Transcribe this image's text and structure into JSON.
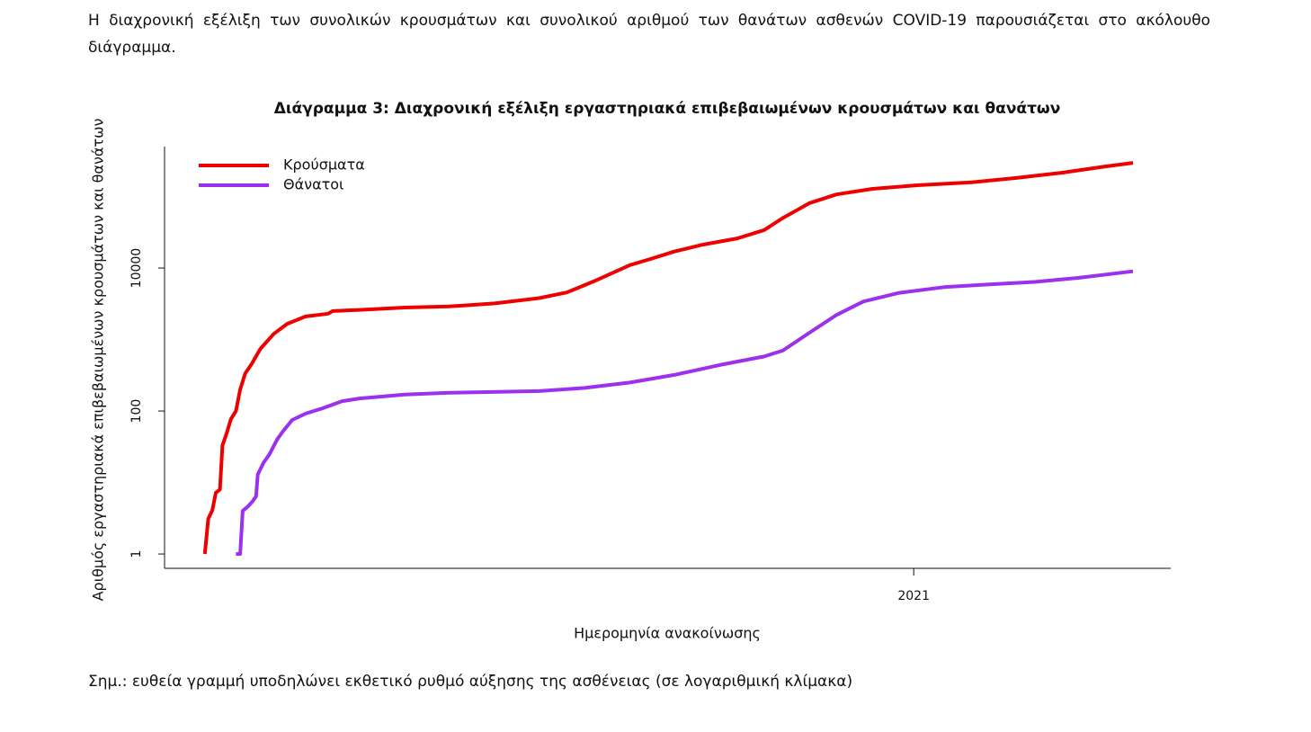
{
  "intro": "Η διαχρονική εξέλιξη των συνολικών κρουσμάτων και συνολικού αριθμού των θανάτων ασθενών COVID-19 παρουσιάζεται στο ακόλουθο διάγραμμα.",
  "chart_data": {
    "type": "line",
    "title": "Διάγραμμα 3: Διαχρονική εξέλιξη εργαστηριακά επιβεβαιωμένων κρουσμάτων και θανάτων",
    "x_label": "Ημερομηνία ανακοίνωσης",
    "y_label": "Αριθμός εργαστηριακά επιβεβαιωμένων κρουσμάτων και θανάτων",
    "xlim": [
      2020.108,
      2021.306
    ],
    "xticks": [
      2021
    ],
    "ylim": [
      0.63,
      500000
    ],
    "yticks": [
      1,
      100,
      10000
    ],
    "log_y": true,
    "legend": "top-left",
    "series": [
      {
        "name": "Κρούσματα",
        "color": "#ee0000",
        "x": [
          2020.156,
          2020.16,
          2020.165,
          2020.169,
          2020.174,
          2020.177,
          2020.182,
          2020.187,
          2020.193,
          2020.198,
          2020.204,
          2020.212,
          2020.222,
          2020.238,
          2020.254,
          2020.276,
          2020.303,
          2020.308,
          2020.34,
          2020.394,
          2020.447,
          2020.501,
          2020.554,
          2020.587,
          2020.619,
          2020.662,
          2020.683,
          2020.715,
          2020.747,
          2020.79,
          2020.822,
          2020.844,
          2020.876,
          2020.908,
          2020.951,
          2021.004,
          2021.069,
          2021.122,
          2021.176,
          2021.229,
          2021.261
        ],
        "values": [
          1,
          3.1,
          4.1,
          7.2,
          8,
          33,
          49,
          77,
          100,
          200,
          335,
          460,
          740,
          1200,
          1660,
          2100,
          2300,
          2500,
          2600,
          2800,
          2900,
          3200,
          3800,
          4550,
          6500,
          11000,
          13000,
          17000,
          21000,
          26000,
          34000,
          50000,
          81000,
          107000,
          128000,
          144000,
          158000,
          182000,
          215000,
          264000,
          296000
        ]
      },
      {
        "name": "Θάνατοι",
        "color": "#9b30ee",
        "x": [
          2020.193,
          2020.198,
          2020.201,
          2020.207,
          2020.212,
          2020.217,
          2020.219,
          2020.226,
          2020.233,
          2020.242,
          2020.249,
          2020.26,
          2020.276,
          2020.297,
          2020.319,
          2020.34,
          2020.394,
          2020.447,
          2020.554,
          2020.608,
          2020.662,
          2020.715,
          2020.769,
          2020.822,
          2020.844,
          2020.876,
          2020.908,
          2020.94,
          2020.983,
          2021.036,
          2021.09,
          2021.144,
          2021.197,
          2021.261
        ],
        "values": [
          1,
          1,
          4,
          4.6,
          5.3,
          6.4,
          13,
          19,
          25,
          40,
          52,
          75,
          92,
          110,
          137,
          150,
          170,
          180,
          190,
          210,
          250,
          320,
          440,
          580,
          700,
          1250,
          2200,
          3400,
          4500,
          5400,
          5900,
          6400,
          7300,
          9000
        ]
      }
    ]
  },
  "note": "Σημ.: ευθεία γραμμή υποδηλώνει εκθετικό ρυθμό αύξησης της ασθένειας (σε λογαριθμική κλίμακα)"
}
